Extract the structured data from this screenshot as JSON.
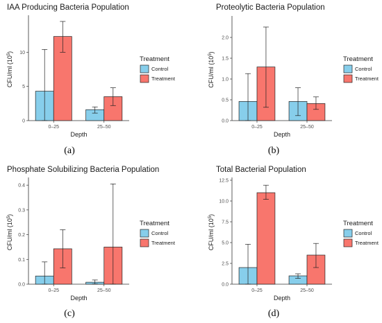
{
  "colors": {
    "control": "#87CEEB",
    "treatment": "#F8766D"
  },
  "chart_data": [
    {
      "type": "bar",
      "panel": "(a)",
      "title": "IAA Producing Bacteria Population",
      "xlabel": "Depth",
      "ylabel": "CFU/ml (10⁵)",
      "ylabel_text": "CFU/ml (10",
      "ylabel_exp": "5",
      "ylim": [
        0,
        15
      ],
      "yticks": [
        0,
        5,
        10
      ],
      "ytick_labels": [
        "0",
        "5",
        "10"
      ],
      "categories": [
        "0–25",
        "25–50"
      ],
      "legend_title": "Treatment",
      "series": [
        {
          "name": "Control",
          "values": [
            4.3,
            1.6
          ],
          "err_low": [
            0,
            1.1
          ],
          "err_high": [
            10.4,
            2.0
          ]
        },
        {
          "name": "Treatment",
          "values": [
            12.3,
            3.5
          ],
          "err_low": [
            10.0,
            2.2
          ],
          "err_high": [
            14.5,
            4.8
          ]
        }
      ]
    },
    {
      "type": "bar",
      "panel": "(b)",
      "title": "Proteolytic Bacteria Population",
      "xlabel": "Depth",
      "ylabel": "CFU/ml (10⁵)",
      "ylabel_text": "CFU/ml (10",
      "ylabel_exp": "5",
      "ylim": [
        0,
        2.45
      ],
      "yticks": [
        0,
        0.5,
        1.0,
        1.5,
        2.0
      ],
      "ytick_labels": [
        "0.0",
        "0.5",
        "1.0",
        "1.5",
        "2.0"
      ],
      "categories": [
        "0–25",
        "25–50"
      ],
      "legend_title": "Treatment",
      "series": [
        {
          "name": "Control",
          "values": [
            0.46,
            0.46
          ],
          "err_low": [
            0,
            0.12
          ],
          "err_high": [
            1.13,
            0.79
          ]
        },
        {
          "name": "Treatment",
          "values": [
            1.29,
            0.41
          ],
          "err_low": [
            0.32,
            0.27
          ],
          "err_high": [
            2.25,
            0.57
          ]
        }
      ]
    },
    {
      "type": "bar",
      "panel": "(c)",
      "title": "Phosphate Solubilizing Bacteria Population",
      "xlabel": "Depth",
      "ylabel": "CFU/ml (10⁵)",
      "ylabel_text": "CFU/ml (10",
      "ylabel_exp": "5",
      "ylim": [
        0,
        0.42
      ],
      "yticks": [
        0,
        0.1,
        0.2,
        0.3,
        0.4
      ],
      "ytick_labels": [
        "0.0",
        "0.1",
        "0.2",
        "0.3",
        "0.4"
      ],
      "categories": [
        "0–25",
        "25–50"
      ],
      "legend_title": "Treatment",
      "series": [
        {
          "name": "Control",
          "values": [
            0.033,
            0.008
          ],
          "err_low": [
            0,
            0.001
          ],
          "err_high": [
            0.09,
            0.017
          ]
        },
        {
          "name": "Treatment",
          "values": [
            0.143,
            0.15
          ],
          "err_low": [
            0.066,
            0
          ],
          "err_high": [
            0.22,
            0.405
          ]
        }
      ]
    },
    {
      "type": "bar",
      "panel": "(d)",
      "title": "Total Bacterial Population",
      "xlabel": "Depth",
      "ylabel": "CFU/ml (10⁵)",
      "ylabel_text": "CFU/ml (10",
      "ylabel_exp": "5",
      "ylim": [
        0,
        12.5
      ],
      "yticks": [
        0,
        2.5,
        5.0,
        7.5,
        10.0,
        12.5
      ],
      "ytick_labels": [
        "0.0",
        "2.5",
        "5.0",
        "7.5",
        "10.0",
        "12.5"
      ],
      "categories": [
        "0–25",
        "25–50"
      ],
      "legend_title": "Treatment",
      "series": [
        {
          "name": "Control",
          "values": [
            2.0,
            1.0
          ],
          "err_low": [
            0,
            0.7
          ],
          "err_high": [
            4.8,
            1.25
          ]
        },
        {
          "name": "Treatment",
          "values": [
            11.0,
            3.5
          ],
          "err_low": [
            10.2,
            2.0
          ],
          "err_high": [
            11.9,
            4.9
          ]
        }
      ]
    }
  ]
}
